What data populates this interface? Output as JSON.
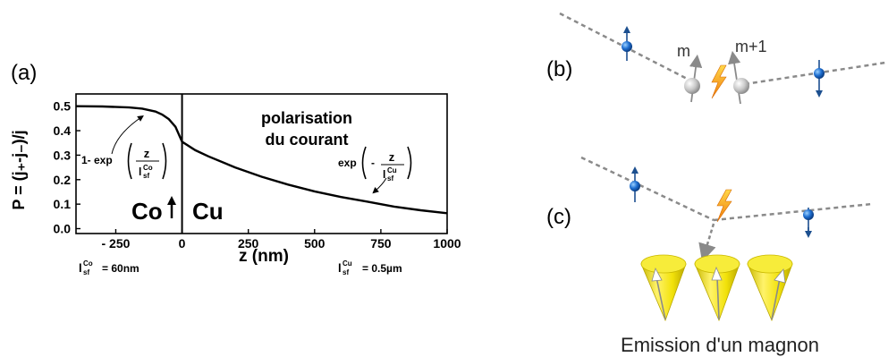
{
  "panel_a": {
    "label": "(a)",
    "ylabel": "P = (j₊-j₋)/j",
    "xlabel": "z (nm)",
    "region_left": "Co",
    "region_right": "Cu",
    "annotation_title_1": "polarisation",
    "annotation_title_2": "du courant",
    "formula_left": {
      "prefix": "1- exp",
      "num": "z",
      "den": "l",
      "den_sup": "Co",
      "den_sub": "sf"
    },
    "formula_right": {
      "prefix": "exp",
      "minus": "-",
      "num": "z",
      "den": "l",
      "den_sup": "Cu",
      "den_sub": "sf"
    },
    "note_left": {
      "symbol": "l",
      "sup": "Co",
      "sub": "sf",
      "value": "= 60nm"
    },
    "note_right": {
      "symbol": "l",
      "sup": "Cu",
      "sub": "sf",
      "value": "= 0.5µm"
    }
  },
  "panel_b": {
    "label": "(b)",
    "moment_left": "m",
    "moment_right": "m+1"
  },
  "panel_c": {
    "label": "(c)",
    "caption": "Emission d'un magnon"
  },
  "chart_data": {
    "type": "line",
    "xlabel": "z (nm)",
    "ylabel": "P = (j₊-j₋)/j",
    "xlim": [
      -400,
      1000
    ],
    "ylim": [
      -0.02,
      0.55
    ],
    "xticks": [
      -250,
      0,
      250,
      500,
      750,
      1000
    ],
    "xtick_labels": [
      "- 250",
      "0",
      "250",
      "500",
      "750",
      "1000"
    ],
    "yticks": [
      0.0,
      0.1,
      0.2,
      0.3,
      0.4,
      0.5
    ],
    "ytick_labels": [
      "0.0",
      "0.1",
      "0.2",
      "0.3",
      "0.4",
      "0.5"
    ],
    "series": [
      {
        "x": [
          -400,
          -300,
          -200,
          -150,
          -100,
          -75,
          -50,
          -25,
          0,
          50,
          100,
          200,
          300,
          400,
          500,
          600,
          700,
          800,
          900,
          1000
        ],
        "y": [
          0.5,
          0.499,
          0.495,
          0.49,
          0.478,
          0.466,
          0.447,
          0.416,
          0.355,
          0.32,
          0.295,
          0.25,
          0.212,
          0.18,
          0.152,
          0.129,
          0.11,
          0.09,
          0.075,
          0.063
        ]
      }
    ],
    "interface_x": 0,
    "grid": false
  },
  "colors": {
    "axis": "#000000",
    "dashed_path": "#8a8a8a",
    "electron": "#1f6fd1",
    "spin_arrow": "#1c4f8f",
    "atom": "#c8c8c8",
    "moment_arrow": "#8a8a8a",
    "spark": "#f5a50a",
    "cone": "#f2e20a"
  }
}
